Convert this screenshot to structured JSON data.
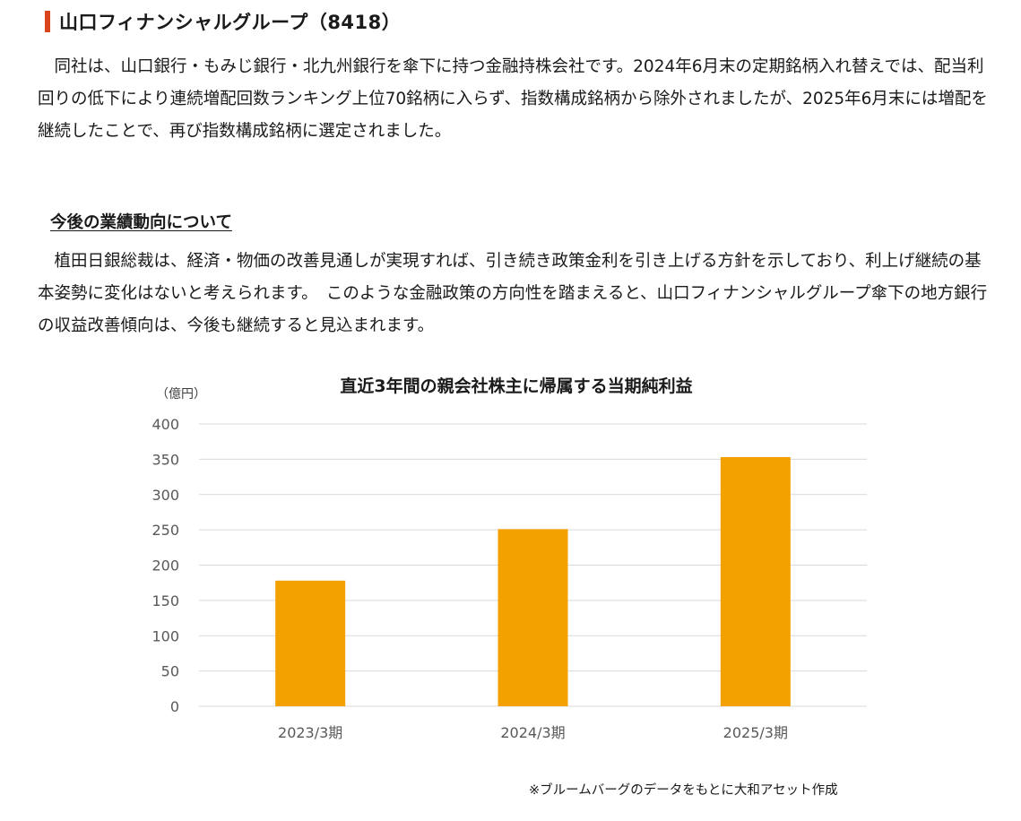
{
  "section": {
    "title": "山口フィナンシャルグループ（8418）",
    "paragraph": "同社は、山口銀行・もみじ銀行・北九州銀行を傘下に持つ金融持株会社です。2024年6月末の定期銘柄入れ替えでは、配当利回りの低下により連続増配回数ランキング上位70銘柄に入らず、指数構成銘柄から除外されましたが、2025年6月末には増配を継続したことで、再び指数構成銘柄に選定されました。"
  },
  "outlook": {
    "heading": "今後の業績動向について",
    "paragraph": "植田日銀総裁は、経済・物価の改善見通しが実現すれば、引き続き政策金利を引き上げる方針を示しており、利上げ継続の基本姿勢に変化はないと考えられます。　このような金融政策の方向性を踏まえると、山口フィナンシャルグループ傘下の地方銀行の収益改善傾向は、今後も継続すると見込まれます。"
  },
  "chart_data": {
    "type": "bar",
    "title": "直近3年間の親会社株主に帰属する当期純利益",
    "unit": "（億円）",
    "categories": [
      "2023/3期",
      "2024/3期",
      "2025/3期"
    ],
    "values": [
      178,
      251,
      353
    ],
    "ylim": [
      0,
      400
    ],
    "yticks": [
      0,
      50,
      100,
      150,
      200,
      250,
      300,
      350,
      400
    ],
    "grid": true,
    "bar_color": "#f2a100",
    "grid_color": "#d9d9d9"
  },
  "source_note": "※ブルームバーグのデータをもとに大和アセット作成"
}
